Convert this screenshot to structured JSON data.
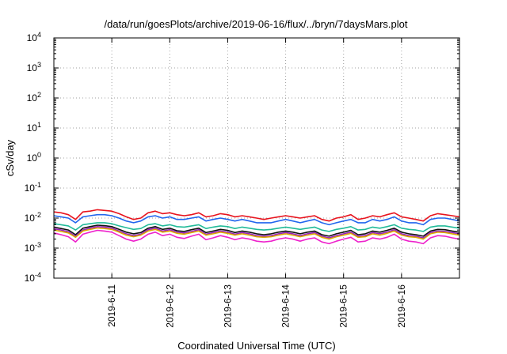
{
  "chart_data": {
    "type": "line",
    "title": "/data/run/goesPlots/archive/2019-06-16/flux/../bryn/7daysMars.plot",
    "xlabel": "Coordinated Universal Time (UTC)",
    "ylabel": "cSv/day",
    "yscale": "log",
    "ylim": [
      0.0001,
      10000
    ],
    "y_ticks": [
      {
        "value": 0.0001,
        "base": "10",
        "exp": "-4"
      },
      {
        "value": 0.001,
        "base": "10",
        "exp": "-3"
      },
      {
        "value": 0.01,
        "base": "10",
        "exp": "-2"
      },
      {
        "value": 0.1,
        "base": "10",
        "exp": "-1"
      },
      {
        "value": 1,
        "base": "10",
        "exp": "0"
      },
      {
        "value": 10,
        "base": "10",
        "exp": "1"
      },
      {
        "value": 100,
        "base": "10",
        "exp": "2"
      },
      {
        "value": 1000,
        "base": "10",
        "exp": "3"
      },
      {
        "value": 10000,
        "base": "10",
        "exp": "4"
      }
    ],
    "xlim": [
      "2019-06-10 00:00",
      "2019-06-17 00:00"
    ],
    "x_ticks": [
      "2019-6-11",
      "2019-6-12",
      "2019-6-13",
      "2019-6-14",
      "2019-6-15",
      "2019-6-16"
    ],
    "grid": true,
    "x": [
      "2019-06-10 00:00",
      "2019-06-10 03:00",
      "2019-06-10 06:00",
      "2019-06-10 09:00",
      "2019-06-10 12:00",
      "2019-06-10 15:00",
      "2019-06-10 18:00",
      "2019-06-10 21:00",
      "2019-06-11 00:00",
      "2019-06-11 03:00",
      "2019-06-11 06:00",
      "2019-06-11 09:00",
      "2019-06-11 12:00",
      "2019-06-11 15:00",
      "2019-06-11 18:00",
      "2019-06-11 21:00",
      "2019-06-12 00:00",
      "2019-06-12 03:00",
      "2019-06-12 06:00",
      "2019-06-12 09:00",
      "2019-06-12 12:00",
      "2019-06-12 15:00",
      "2019-06-12 18:00",
      "2019-06-12 21:00",
      "2019-06-13 00:00",
      "2019-06-13 03:00",
      "2019-06-13 06:00",
      "2019-06-13 09:00",
      "2019-06-13 12:00",
      "2019-06-13 15:00",
      "2019-06-13 18:00",
      "2019-06-13 21:00",
      "2019-06-14 00:00",
      "2019-06-14 03:00",
      "2019-06-14 06:00",
      "2019-06-14 09:00",
      "2019-06-14 12:00",
      "2019-06-14 15:00",
      "2019-06-14 18:00",
      "2019-06-14 21:00",
      "2019-06-15 00:00",
      "2019-06-15 03:00",
      "2019-06-15 06:00",
      "2019-06-15 09:00",
      "2019-06-15 12:00",
      "2019-06-15 15:00",
      "2019-06-15 18:00",
      "2019-06-15 21:00",
      "2019-06-16 00:00",
      "2019-06-16 03:00",
      "2019-06-16 06:00",
      "2019-06-16 09:00",
      "2019-06-16 12:00",
      "2019-06-16 15:00",
      "2019-06-16 18:00",
      "2019-06-16 21:00",
      "2019-06-17 00:00"
    ],
    "series": [
      {
        "color": "#e8141e",
        "values": [
          0.016,
          0.015,
          0.013,
          0.009,
          0.016,
          0.017,
          0.019,
          0.018,
          0.017,
          0.014,
          0.011,
          0.009,
          0.01,
          0.015,
          0.017,
          0.014,
          0.015,
          0.013,
          0.012,
          0.013,
          0.015,
          0.011,
          0.012,
          0.014,
          0.013,
          0.011,
          0.012,
          0.011,
          0.01,
          0.009,
          0.01,
          0.011,
          0.012,
          0.011,
          0.01,
          0.011,
          0.012,
          0.009,
          0.008,
          0.01,
          0.011,
          0.013,
          0.009,
          0.01,
          0.012,
          0.011,
          0.013,
          0.015,
          0.011,
          0.01,
          0.009,
          0.008,
          0.012,
          0.014,
          0.013,
          0.012,
          0.011
        ]
      },
      {
        "color": "#2266ee",
        "values": [
          0.012,
          0.011,
          0.01,
          0.007,
          0.011,
          0.012,
          0.013,
          0.013,
          0.012,
          0.01,
          0.008,
          0.007,
          0.008,
          0.011,
          0.012,
          0.01,
          0.011,
          0.009,
          0.009,
          0.01,
          0.011,
          0.008,
          0.009,
          0.01,
          0.009,
          0.008,
          0.009,
          0.008,
          0.007,
          0.007,
          0.007,
          0.008,
          0.009,
          0.008,
          0.007,
          0.008,
          0.009,
          0.007,
          0.006,
          0.007,
          0.008,
          0.009,
          0.007,
          0.007,
          0.009,
          0.008,
          0.009,
          0.011,
          0.008,
          0.007,
          0.007,
          0.006,
          0.009,
          0.01,
          0.01,
          0.009,
          0.008
        ]
      },
      {
        "color": "#22bb99",
        "values": [
          0.0065,
          0.006,
          0.0055,
          0.004,
          0.006,
          0.0065,
          0.007,
          0.007,
          0.0065,
          0.0055,
          0.0048,
          0.0042,
          0.0045,
          0.006,
          0.0065,
          0.0055,
          0.006,
          0.0052,
          0.005,
          0.0055,
          0.006,
          0.0045,
          0.005,
          0.0055,
          0.0052,
          0.0045,
          0.005,
          0.0046,
          0.0042,
          0.004,
          0.0042,
          0.0046,
          0.005,
          0.0046,
          0.0042,
          0.0046,
          0.005,
          0.004,
          0.0036,
          0.0042,
          0.0046,
          0.0052,
          0.004,
          0.0042,
          0.005,
          0.0046,
          0.0052,
          0.006,
          0.0046,
          0.0042,
          0.004,
          0.0036,
          0.005,
          0.0055,
          0.0055,
          0.005,
          0.0046
        ]
      },
      {
        "color": "#111111",
        "values": [
          0.005,
          0.0045,
          0.004,
          0.0028,
          0.0046,
          0.0052,
          0.0058,
          0.0056,
          0.0052,
          0.0042,
          0.0034,
          0.003,
          0.0033,
          0.0046,
          0.0052,
          0.0042,
          0.0046,
          0.0038,
          0.0036,
          0.0041,
          0.0046,
          0.0033,
          0.0037,
          0.0042,
          0.0039,
          0.0033,
          0.0037,
          0.0034,
          0.003,
          0.0028,
          0.003,
          0.0034,
          0.0037,
          0.0034,
          0.003,
          0.0034,
          0.0037,
          0.0028,
          0.0025,
          0.003,
          0.0034,
          0.0039,
          0.0028,
          0.003,
          0.0037,
          0.0034,
          0.0039,
          0.0046,
          0.0034,
          0.003,
          0.0028,
          0.0025,
          0.0037,
          0.0042,
          0.0041,
          0.0037,
          0.0034
        ]
      },
      {
        "color": "#9922bb",
        "values": [
          0.0044,
          0.004,
          0.0035,
          0.0025,
          0.004,
          0.0046,
          0.0052,
          0.005,
          0.0046,
          0.0037,
          0.003,
          0.0026,
          0.0029,
          0.0041,
          0.0046,
          0.0037,
          0.0041,
          0.0034,
          0.0032,
          0.0036,
          0.0041,
          0.0029,
          0.0033,
          0.0037,
          0.0034,
          0.0029,
          0.0033,
          0.003,
          0.0026,
          0.0025,
          0.0026,
          0.003,
          0.0033,
          0.003,
          0.0026,
          0.003,
          0.0033,
          0.0025,
          0.0022,
          0.0026,
          0.003,
          0.0034,
          0.0025,
          0.0026,
          0.0033,
          0.003,
          0.0034,
          0.0041,
          0.003,
          0.0026,
          0.0025,
          0.0022,
          0.0033,
          0.0037,
          0.0036,
          0.0033,
          0.003
        ]
      },
      {
        "color": "#ddaa00",
        "values": [
          0.004,
          0.0036,
          0.0032,
          0.0023,
          0.0037,
          0.0042,
          0.0047,
          0.0045,
          0.0042,
          0.0034,
          0.0027,
          0.0024,
          0.0027,
          0.0037,
          0.0042,
          0.0034,
          0.0037,
          0.0031,
          0.0029,
          0.0033,
          0.0037,
          0.0027,
          0.003,
          0.0034,
          0.0031,
          0.0027,
          0.003,
          0.0027,
          0.0024,
          0.0023,
          0.0024,
          0.0027,
          0.003,
          0.0027,
          0.0024,
          0.0027,
          0.003,
          0.0023,
          0.002,
          0.0024,
          0.0027,
          0.0031,
          0.0023,
          0.0024,
          0.003,
          0.0027,
          0.0031,
          0.0037,
          0.0027,
          0.0024,
          0.0023,
          0.002,
          0.003,
          0.0034,
          0.0033,
          0.003,
          0.0027
        ]
      },
      {
        "color": "#ee22cc",
        "values": [
          0.0032,
          0.0028,
          0.0024,
          0.0016,
          0.0029,
          0.0034,
          0.0039,
          0.0037,
          0.0034,
          0.0026,
          0.002,
          0.0017,
          0.002,
          0.0029,
          0.0034,
          0.0026,
          0.0029,
          0.0023,
          0.0021,
          0.0025,
          0.0029,
          0.0019,
          0.0022,
          0.0026,
          0.0023,
          0.0019,
          0.0022,
          0.002,
          0.0017,
          0.0016,
          0.0017,
          0.002,
          0.0022,
          0.002,
          0.0017,
          0.002,
          0.0022,
          0.0016,
          0.0014,
          0.0017,
          0.002,
          0.0023,
          0.0016,
          0.0017,
          0.0022,
          0.002,
          0.0023,
          0.0029,
          0.002,
          0.0017,
          0.0016,
          0.0014,
          0.0022,
          0.0026,
          0.0025,
          0.0022,
          0.002
        ]
      }
    ]
  }
}
